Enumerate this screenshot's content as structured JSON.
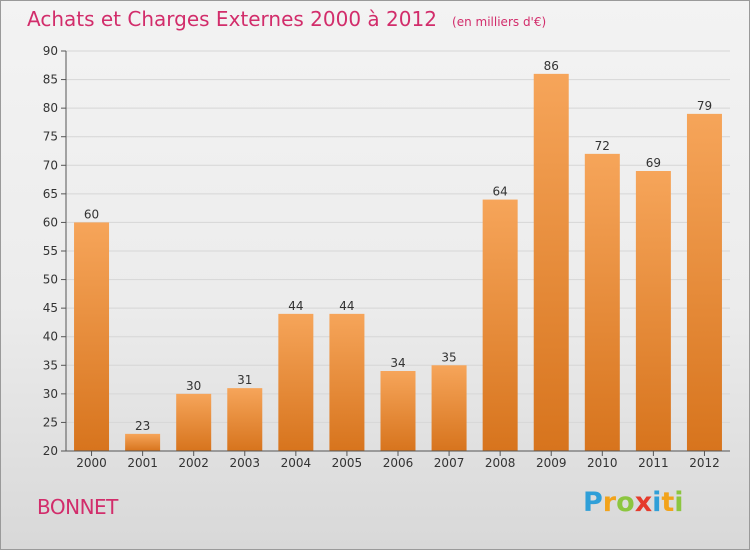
{
  "title": "Achats et Charges Externes 2000 à 2012",
  "subtitle": "(en milliers d'€)",
  "commune": "BONNET",
  "logo": {
    "text": "Proxiti",
    "letters": [
      {
        "ch": "P",
        "color": "#2f9fd8"
      },
      {
        "ch": "r",
        "color": "#f2a31b"
      },
      {
        "ch": "o",
        "color": "#8cc63f"
      },
      {
        "ch": "x",
        "color": "#e53b2c"
      },
      {
        "ch": "i",
        "color": "#2f9fd8"
      },
      {
        "ch": "t",
        "color": "#f2a31b"
      },
      {
        "ch": "i",
        "color": "#8cc63f"
      }
    ]
  },
  "colors": {
    "accent": "#d22d6b",
    "bar_top": "#f6a55a",
    "bar_bottom": "#d7741d",
    "grid": "#d6d6d6",
    "axis": "#555555",
    "text": "#333333"
  },
  "chart_data": {
    "type": "bar",
    "categories": [
      "2000",
      "2001",
      "2002",
      "2003",
      "2004",
      "2005",
      "2006",
      "2007",
      "2008",
      "2009",
      "2010",
      "2011",
      "2012"
    ],
    "values": [
      60,
      23,
      30,
      31,
      44,
      44,
      34,
      35,
      64,
      86,
      72,
      69,
      79
    ],
    "data_labels": [
      "60",
      "23",
      "30",
      "31",
      "44",
      "44",
      "34",
      "35",
      "64",
      "86",
      "72",
      "69",
      "79"
    ],
    "ylim": [
      20,
      90
    ],
    "yticks": [
      "20",
      "25",
      "30",
      "35",
      "40",
      "45",
      "50",
      "55",
      "60",
      "65",
      "70",
      "75",
      "80",
      "85",
      "90"
    ],
    "grid": true,
    "legend": "none",
    "xlabel": "",
    "ylabel": ""
  }
}
